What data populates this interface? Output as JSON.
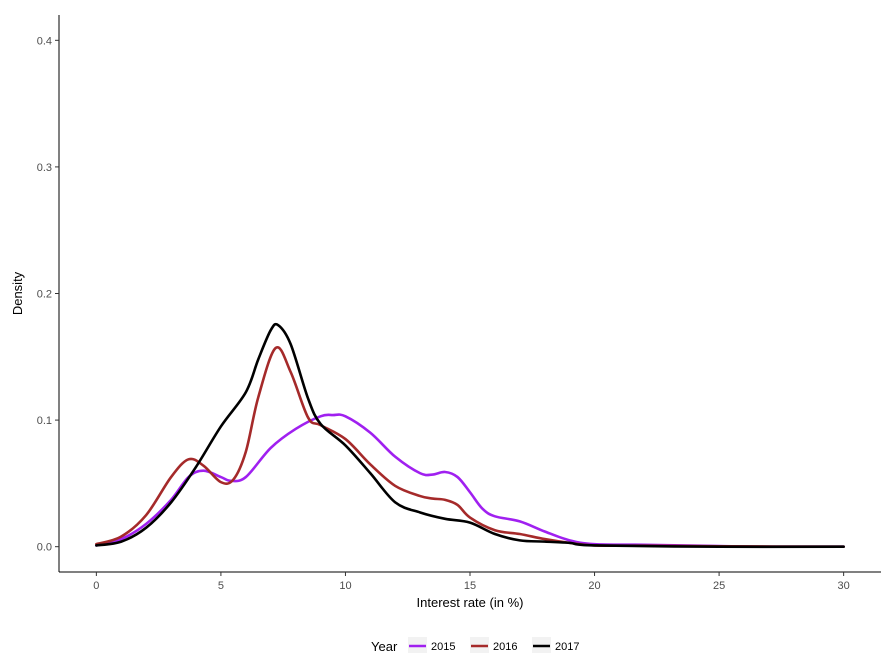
{
  "chart_data": {
    "type": "line",
    "title": "",
    "xlabel": "Interest rate (in %)",
    "ylabel": "Density",
    "xlim": [
      -1.5,
      31.5
    ],
    "ylim": [
      -0.02,
      0.42
    ],
    "x_ticks": [
      0,
      5,
      10,
      15,
      20,
      25,
      30
    ],
    "x_tick_labels": [
      "0",
      "5",
      "10",
      "15",
      "20",
      "25",
      "30"
    ],
    "y_ticks": [
      0.0,
      0.1,
      0.2,
      0.3,
      0.4
    ],
    "y_tick_labels": [
      "0.0",
      "0.1",
      "0.2",
      "0.3",
      "0.4"
    ],
    "grid": false,
    "legend": {
      "title": "Year",
      "position": "bottom"
    },
    "series": [
      {
        "name": "2015",
        "color": "#a020f0",
        "points": [
          [
            0,
            0.001
          ],
          [
            1,
            0.006
          ],
          [
            2,
            0.018
          ],
          [
            3,
            0.037
          ],
          [
            3.7,
            0.055
          ],
          [
            4.3,
            0.06
          ],
          [
            5,
            0.055
          ],
          [
            5.4,
            0.052
          ],
          [
            6,
            0.055
          ],
          [
            7,
            0.078
          ],
          [
            8,
            0.093
          ],
          [
            9,
            0.103
          ],
          [
            9.5,
            0.104
          ],
          [
            10,
            0.103
          ],
          [
            11,
            0.09
          ],
          [
            12,
            0.071
          ],
          [
            13,
            0.058
          ],
          [
            13.5,
            0.057
          ],
          [
            14,
            0.059
          ],
          [
            14.5,
            0.055
          ],
          [
            15,
            0.043
          ],
          [
            15.5,
            0.03
          ],
          [
            16,
            0.024
          ],
          [
            17,
            0.02
          ],
          [
            18,
            0.012
          ],
          [
            19,
            0.005
          ],
          [
            20,
            0.002
          ],
          [
            22,
            0.0015
          ],
          [
            25,
            0.0005
          ],
          [
            27,
            0.0
          ],
          [
            30,
            0.0
          ]
        ]
      },
      {
        "name": "2016",
        "color": "#a52a2a",
        "points": [
          [
            0,
            0.002
          ],
          [
            1,
            0.008
          ],
          [
            2,
            0.025
          ],
          [
            3,
            0.055
          ],
          [
            3.7,
            0.069
          ],
          [
            4.3,
            0.064
          ],
          [
            5,
            0.051
          ],
          [
            5.5,
            0.053
          ],
          [
            6,
            0.075
          ],
          [
            6.5,
            0.118
          ],
          [
            7.2,
            0.157
          ],
          [
            7.8,
            0.138
          ],
          [
            8.5,
            0.102
          ],
          [
            9,
            0.096
          ],
          [
            10,
            0.085
          ],
          [
            11,
            0.065
          ],
          [
            12,
            0.048
          ],
          [
            13,
            0.04
          ],
          [
            13.5,
            0.038
          ],
          [
            14,
            0.037
          ],
          [
            14.5,
            0.033
          ],
          [
            15,
            0.023
          ],
          [
            16,
            0.013
          ],
          [
            17,
            0.01
          ],
          [
            18,
            0.006
          ],
          [
            19,
            0.003
          ],
          [
            20,
            0.001
          ],
          [
            22,
            0.0008
          ],
          [
            25,
            0.0003
          ],
          [
            30,
            0.0
          ]
        ]
      },
      {
        "name": "2017",
        "color": "#000000",
        "points": [
          [
            0,
            0.001
          ],
          [
            1,
            0.004
          ],
          [
            2,
            0.015
          ],
          [
            3,
            0.035
          ],
          [
            4,
            0.063
          ],
          [
            5,
            0.095
          ],
          [
            6,
            0.122
          ],
          [
            6.5,
            0.148
          ],
          [
            7,
            0.171
          ],
          [
            7.3,
            0.175
          ],
          [
            7.8,
            0.16
          ],
          [
            8.5,
            0.117
          ],
          [
            9,
            0.097
          ],
          [
            10,
            0.08
          ],
          [
            11,
            0.058
          ],
          [
            12,
            0.035
          ],
          [
            13,
            0.027
          ],
          [
            14,
            0.022
          ],
          [
            15,
            0.019
          ],
          [
            16,
            0.01
          ],
          [
            17,
            0.005
          ],
          [
            18,
            0.004
          ],
          [
            19,
            0.003
          ],
          [
            20,
            0.001
          ],
          [
            25,
            0.0
          ],
          [
            30,
            0.0
          ]
        ]
      }
    ]
  }
}
